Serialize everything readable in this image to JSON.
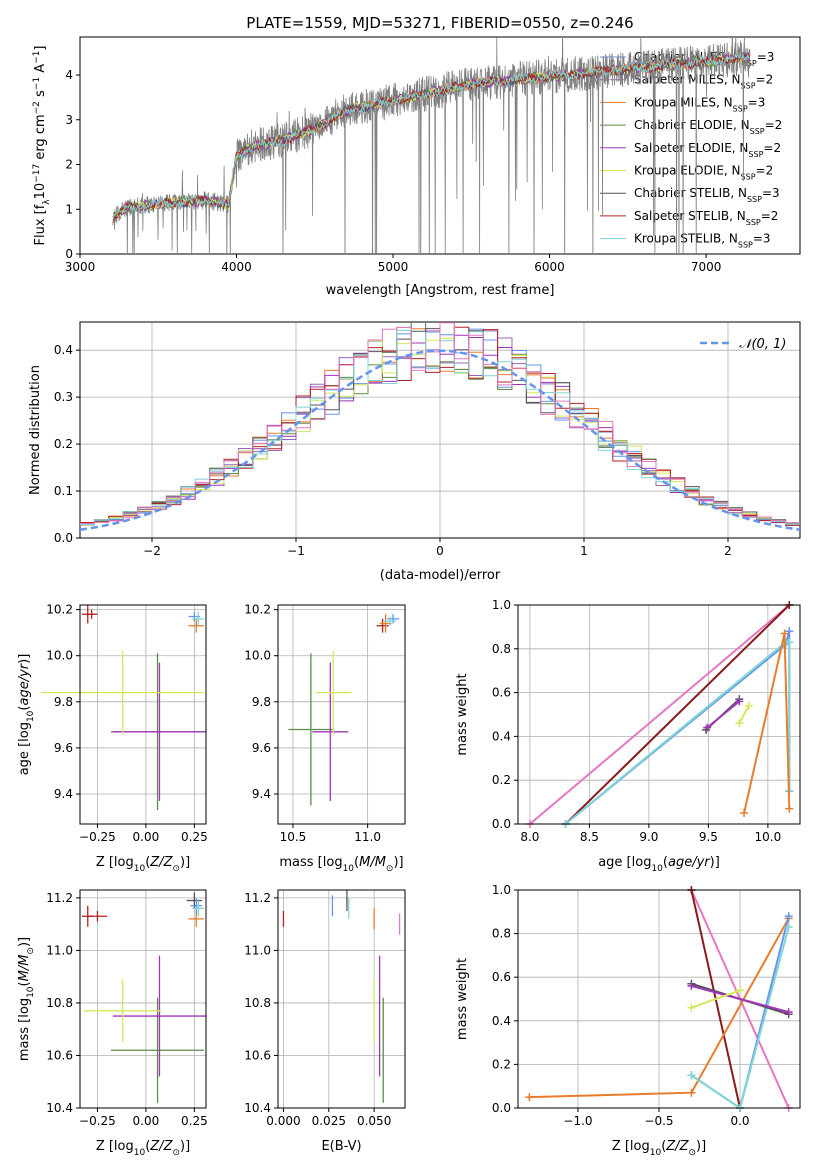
{
  "figure": {
    "title": "PLATE=1559, MJD=53271, FIBERID=0550, z=0.246"
  },
  "chart_data": [
    {
      "id": "spectrum",
      "type": "line",
      "xlabel": "wavelength [Angstrom, rest frame]",
      "ylabel": "Flux [f$_\\lambda$ 10$^{-17}$ erg cm$^{-2}$ s$^{-1}$ A$^{-1}$]",
      "xlim": [
        3000,
        7600
      ],
      "ylim": [
        0,
        4.85
      ],
      "xticks": [
        3000,
        4000,
        5000,
        6000,
        7000
      ],
      "yticks": [
        0,
        1,
        2,
        3,
        4
      ],
      "data_range": [
        3210,
        7280
      ],
      "legend_position": "upper right",
      "series": [
        {
          "name": "Chabrier MILES, N$_{SSP}$=3",
          "color": "#6495ed"
        },
        {
          "name": "Salpeter MILES, N$_{SSP}$=2",
          "color": "#9467bd"
        },
        {
          "name": "Kroupa MILES, N$_{SSP}$=3",
          "color": "#e87c2a"
        },
        {
          "name": "Chabrier ELODIE, N$_{SSP}$=2",
          "color": "#5a8f4b"
        },
        {
          "name": "Salpeter ELODIE, N$_{SSP}$=2",
          "color": "#a035b8"
        },
        {
          "name": "Kroupa ELODIE, N$_{SSP}$=2",
          "color": "#d4e85c"
        },
        {
          "name": "Chabrier STELIB, N$_{SSP}$=3",
          "color": "#555555"
        },
        {
          "name": "Salpeter STELIB, N$_{SSP}$=2",
          "color": "#b22222"
        },
        {
          "name": "Kroupa STELIB, N$_{SSP}$=3",
          "color": "#7fd4d4"
        }
      ],
      "continuum_nodes": {
        "x": [
          3210,
          3300,
          3450,
          3600,
          3800,
          3950,
          4000,
          4100,
          4300,
          4500,
          4700,
          4900,
          5100,
          5300,
          5500,
          5800,
          6100,
          6400,
          6700,
          7000,
          7280
        ],
        "y": [
          0.8,
          1.05,
          1.1,
          1.15,
          1.2,
          1.1,
          2.2,
          2.4,
          2.55,
          2.8,
          3.2,
          3.35,
          3.5,
          3.65,
          3.8,
          3.9,
          4.0,
          4.1,
          4.2,
          4.3,
          4.4
        ]
      }
    },
    {
      "id": "residuals",
      "type": "histogram",
      "xlabel": "(data-model)/error",
      "ylabel": "Normed distribution",
      "xlim": [
        -2.5,
        2.5
      ],
      "ylim": [
        0,
        0.46
      ],
      "xticks": [
        -2,
        -1,
        0,
        1,
        2
      ],
      "yticks": [
        0.0,
        0.1,
        0.2,
        0.3,
        0.4
      ],
      "grid": true,
      "legend": {
        "label": "$\\mathcal{N}(0,1)$",
        "position": "upper right"
      },
      "curve": {
        "type": "gaussian",
        "mean": 0,
        "sigma": 1,
        "color": "#6495ed"
      },
      "bin_edges": [
        -2.5,
        2.5
      ],
      "bin_width": 0.1
    },
    {
      "id": "age_vs_Z",
      "type": "errorbar",
      "xlabel": "Z [log$_{10}$(Z/Z$_\\odot$)]",
      "ylabel": "age  [log$_{10}$(age/yr)]",
      "xlim": [
        -0.34,
        0.31
      ],
      "ylim": [
        9.27,
        10.22
      ],
      "xticks": [
        -0.25,
        0.0,
        0.25
      ],
      "xticklabels": [
        "−0.25",
        "0.00",
        "0.25"
      ],
      "yticks": [
        9.4,
        9.6,
        9.8,
        10.0,
        10.2
      ],
      "grid": true,
      "points": [
        {
          "x": 0.06,
          "y": 9.67,
          "xerr": 0.24,
          "yerr": 0.34,
          "color": "#5a8f4b"
        },
        {
          "x": 0.07,
          "y": 9.67,
          "xerr": 0.24,
          "yerr": 0.3,
          "color": "#a035b8"
        },
        {
          "x": -0.12,
          "y": 9.84,
          "xerr": 0.42,
          "yerr": 0.18,
          "color": "#d4e85c"
        },
        {
          "x": -0.3,
          "y": 10.18,
          "xerr": 0.03,
          "yerr": 0.04,
          "color": "#b22222"
        },
        {
          "x": -0.28,
          "y": 10.18,
          "xerr": 0.03,
          "yerr": 0.02,
          "color": "#b22222"
        },
        {
          "x": 0.26,
          "y": 10.13,
          "xerr": 0.04,
          "yerr": 0.03,
          "color": "#e87c2a"
        },
        {
          "x": 0.25,
          "y": 10.17,
          "xerr": 0.03,
          "yerr": 0.02,
          "color": "#6495ed"
        },
        {
          "x": 0.27,
          "y": 10.16,
          "xerr": 0.03,
          "yerr": 0.03,
          "color": "#7fd4d4"
        }
      ]
    },
    {
      "id": "age_vs_mass",
      "type": "errorbar",
      "xlabel": "mass [log$_{10}$(M/M$_\\odot$)]",
      "ylabel": "",
      "xlim": [
        10.4,
        11.25
      ],
      "ylim": [
        9.27,
        10.22
      ],
      "xticks": [
        10.5,
        11.0
      ],
      "xticklabels": [
        "10.5",
        "11.0"
      ],
      "yticks": [
        9.4,
        9.6,
        9.8,
        10.0,
        10.2
      ],
      "grid": true,
      "points": [
        {
          "x": 10.62,
          "y": 9.68,
          "xerr": 0.15,
          "yerr": 0.33,
          "color": "#5a8f4b"
        },
        {
          "x": 10.75,
          "y": 9.67,
          "xerr": 0.12,
          "yerr": 0.3,
          "color": "#a035b8"
        },
        {
          "x": 10.77,
          "y": 9.84,
          "xerr": 0.12,
          "yerr": 0.18,
          "color": "#d4e85c"
        },
        {
          "x": 11.1,
          "y": 10.13,
          "xerr": 0.04,
          "yerr": 0.03,
          "color": "#b22222"
        },
        {
          "x": 11.12,
          "y": 10.14,
          "xerr": 0.04,
          "yerr": 0.04,
          "color": "#e87c2a"
        },
        {
          "x": 11.17,
          "y": 10.16,
          "xerr": 0.04,
          "yerr": 0.02,
          "color": "#6495ed"
        },
        {
          "x": 11.15,
          "y": 10.15,
          "xerr": 0.04,
          "yerr": 0.02,
          "color": "#7fd4d4"
        }
      ]
    },
    {
      "id": "mass_weight_vs_age",
      "type": "line",
      "xlabel": "age  [log$_{10}$(age/yr)]",
      "ylabel": "mass weight",
      "xlim": [
        7.9,
        10.27
      ],
      "ylim": [
        0,
        1.0
      ],
      "xticks": [
        8.0,
        8.5,
        9.0,
        9.5,
        10.0
      ],
      "xticklabels": [
        "8.0",
        "8.5",
        "9.0",
        "9.5",
        "10.0"
      ],
      "yticks": [
        0.0,
        0.2,
        0.4,
        0.6,
        0.8,
        1.0
      ],
      "grid": true,
      "series": [
        {
          "color": "#e377c2",
          "x": [
            8.0,
            10.18
          ],
          "y": [
            0.0,
            1.0
          ]
        },
        {
          "color": "#8b1a1a",
          "x": [
            8.3,
            10.18
          ],
          "y": [
            0.0,
            1.0
          ]
        },
        {
          "color": "#6495ed",
          "x": [
            8.3,
            10.15,
            10.18,
            10.18
          ],
          "y": [
            0.0,
            0.82,
            0.88,
            0.15
          ]
        },
        {
          "color": "#7fd4d4",
          "x": [
            8.3,
            10.15,
            10.18,
            10.18
          ],
          "y": [
            0.0,
            0.83,
            0.83,
            0.15
          ]
        },
        {
          "color": "#e87c2a",
          "x": [
            9.8,
            10.14,
            10.18
          ],
          "y": [
            0.05,
            0.87,
            0.07
          ]
        },
        {
          "color": "#555555",
          "x": [
            9.48,
            9.76
          ],
          "y": [
            0.43,
            0.57
          ]
        },
        {
          "color": "#a035b8",
          "x": [
            9.49,
            9.76
          ],
          "y": [
            0.44,
            0.56
          ]
        },
        {
          "color": "#d4e85c",
          "x": [
            9.76,
            9.84
          ],
          "y": [
            0.46,
            0.54
          ]
        }
      ]
    },
    {
      "id": "mass_vs_Z",
      "type": "errorbar",
      "xlabel": "Z [log$_{10}$(Z/Z$_\\odot$)]",
      "ylabel": "mass [log$_{10}$(M/M$_\\odot$)]",
      "xlim": [
        -0.34,
        0.31
      ],
      "ylim": [
        10.4,
        11.23
      ],
      "xticks": [
        -0.25,
        0.0,
        0.25
      ],
      "xticklabels": [
        "−0.25",
        "0.00",
        "0.25"
      ],
      "yticks": [
        10.4,
        10.6,
        10.8,
        11.0,
        11.2
      ],
      "grid": true,
      "points": [
        {
          "x": 0.06,
          "y": 10.62,
          "xerr": 0.24,
          "yerr": 0.2,
          "color": "#5a8f4b"
        },
        {
          "x": 0.07,
          "y": 10.75,
          "xerr": 0.24,
          "yerr": 0.23,
          "color": "#a035b8"
        },
        {
          "x": -0.12,
          "y": 10.77,
          "xerr": 0.2,
          "yerr": 0.12,
          "color": "#d4e85c"
        },
        {
          "x": -0.3,
          "y": 11.13,
          "xerr": 0.03,
          "yerr": 0.04,
          "color": "#b22222"
        },
        {
          "x": -0.25,
          "y": 11.13,
          "xerr": 0.05,
          "yerr": 0.02,
          "color": "#b22222"
        },
        {
          "x": 0.26,
          "y": 11.12,
          "xerr": 0.04,
          "yerr": 0.03,
          "color": "#e87c2a"
        },
        {
          "x": 0.25,
          "y": 11.19,
          "xerr": 0.04,
          "yerr": 0.03,
          "color": "#555555"
        },
        {
          "x": 0.26,
          "y": 11.17,
          "xerr": 0.03,
          "yerr": 0.03,
          "color": "#6495ed"
        },
        {
          "x": 0.27,
          "y": 11.16,
          "xerr": 0.03,
          "yerr": 0.03,
          "color": "#7fd4d4"
        }
      ]
    },
    {
      "id": "mass_vs_EBV",
      "type": "errorbar",
      "xlabel": "E(B-V)",
      "ylabel": "",
      "xlim": [
        -0.003,
        0.067
      ],
      "ylim": [
        10.4,
        11.23
      ],
      "xticks": [
        0.0,
        0.025,
        0.05
      ],
      "xticklabels": [
        "0.000",
        "0.025",
        "0.050"
      ],
      "yticks": [
        10.4,
        10.6,
        10.8,
        11.0,
        11.2
      ],
      "grid": true,
      "points": [
        {
          "x": 0.0,
          "y": 11.12,
          "xerr": 0.0,
          "yerr": 0.03,
          "color": "#b22222"
        },
        {
          "x": 0.027,
          "y": 11.17,
          "xerr": 0.0,
          "yerr": 0.04,
          "color": "#6495ed"
        },
        {
          "x": 0.035,
          "y": 11.19,
          "xerr": 0.0,
          "yerr": 0.04,
          "color": "#555555"
        },
        {
          "x": 0.036,
          "y": 11.16,
          "xerr": 0.0,
          "yerr": 0.04,
          "color": "#7fd4d4"
        },
        {
          "x": 0.05,
          "y": 11.12,
          "xerr": 0.0,
          "yerr": 0.04,
          "color": "#e87c2a"
        },
        {
          "x": 0.05,
          "y": 10.77,
          "xerr": 0.0,
          "yerr": 0.12,
          "color": "#d4e85c"
        },
        {
          "x": 0.053,
          "y": 10.75,
          "xerr": 0.0,
          "yerr": 0.23,
          "color": "#a035b8"
        },
        {
          "x": 0.055,
          "y": 10.62,
          "xerr": 0.0,
          "yerr": 0.2,
          "color": "#5a8f4b"
        },
        {
          "x": 0.064,
          "y": 11.1,
          "xerr": 0.0,
          "yerr": 0.04,
          "color": "#e377c2"
        }
      ]
    },
    {
      "id": "mass_weight_vs_Z",
      "type": "line",
      "xlabel": "Z [log$_{10}$(Z/Z$_\\odot$)]",
      "ylabel": "mass weight",
      "xlim": [
        -1.37,
        0.37
      ],
      "ylim": [
        0,
        1.0
      ],
      "xticks": [
        -1.0,
        -0.5,
        0.0
      ],
      "xticklabels": [
        "−1.0",
        "−0.5",
        "0.0"
      ],
      "yticks": [
        0.0,
        0.2,
        0.4,
        0.6,
        0.8,
        1.0
      ],
      "grid": true,
      "series": [
        {
          "color": "#e377c2",
          "x": [
            -0.3,
            0.3
          ],
          "y": [
            1.0,
            0.0
          ]
        },
        {
          "color": "#8b1a1a",
          "x": [
            -0.3,
            0.0
          ],
          "y": [
            1.0,
            0.0
          ]
        },
        {
          "color": "#e87c2a",
          "x": [
            -1.3,
            -0.3,
            0.3
          ],
          "y": [
            0.05,
            0.07,
            0.87
          ]
        },
        {
          "color": "#6495ed",
          "x": [
            -0.3,
            0.0,
            0.3
          ],
          "y": [
            0.15,
            0.0,
            0.88
          ]
        },
        {
          "color": "#7fd4d4",
          "x": [
            -0.3,
            0.0,
            0.3
          ],
          "y": [
            0.15,
            0.0,
            0.83
          ]
        },
        {
          "color": "#555555",
          "x": [
            -0.3,
            0.3
          ],
          "y": [
            0.57,
            0.43
          ]
        },
        {
          "color": "#a035b8",
          "x": [
            -0.3,
            0.3
          ],
          "y": [
            0.56,
            0.44
          ]
        },
        {
          "color": "#d4e85c",
          "x": [
            -0.3,
            0.0
          ],
          "y": [
            0.46,
            0.54
          ]
        }
      ]
    }
  ]
}
